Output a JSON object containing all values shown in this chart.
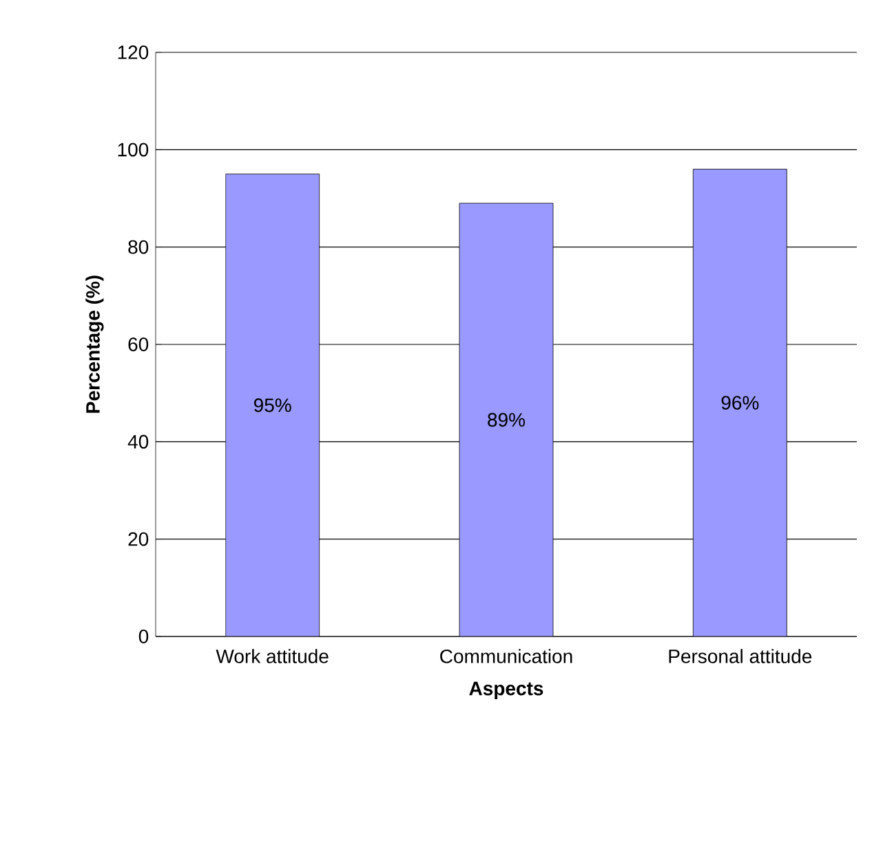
{
  "chart_data": {
    "type": "bar",
    "xlabel": "Aspects",
    "ylabel": "Percentage (%)",
    "categories": [
      "Work attitude",
      "Communication",
      "Personal attitude"
    ],
    "values": [
      95,
      89,
      96
    ],
    "color": "#9999ff",
    "value_labels": [
      "95%",
      "89%",
      "96%"
    ],
    "ylim": [
      0,
      120
    ],
    "yticks": [
      0,
      20,
      40,
      60,
      80,
      100,
      120
    ],
    "grid": "y"
  }
}
